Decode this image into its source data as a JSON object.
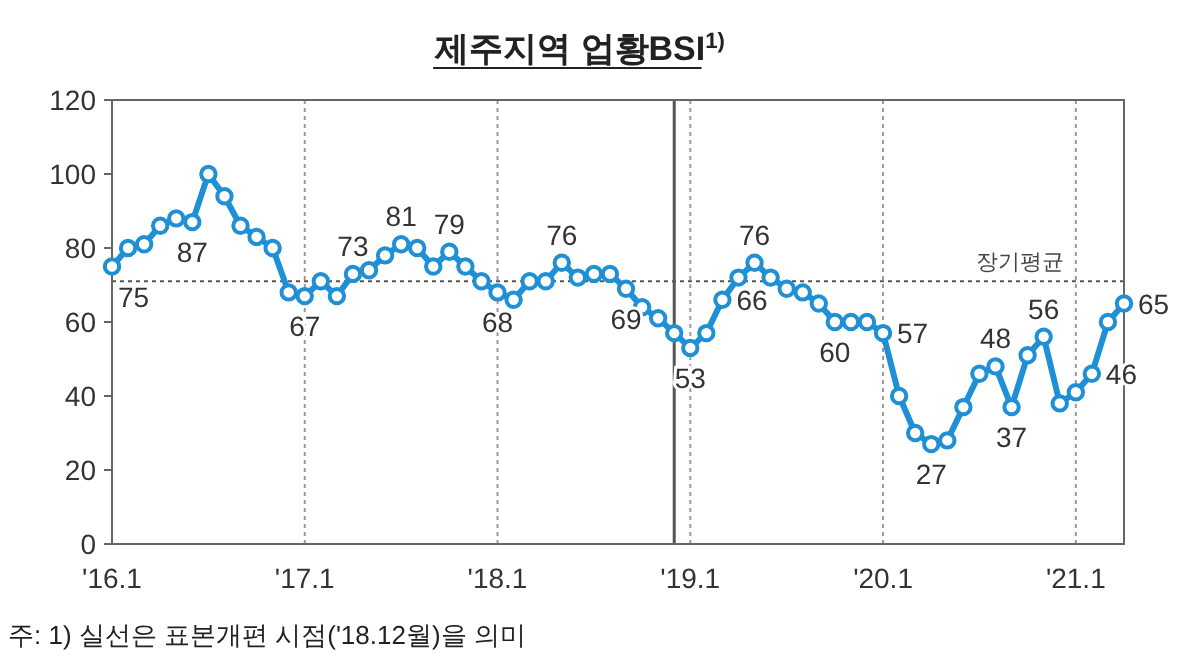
{
  "chart_data": {
    "type": "line",
    "title": "제주지역  업황BSI$^{1)}$",
    "x": [
      "2016-01",
      "2016-02",
      "2016-03",
      "2016-04",
      "2016-05",
      "2016-06",
      "2016-07",
      "2016-08",
      "2016-09",
      "2016-10",
      "2016-11",
      "2016-12",
      "2017-01",
      "2017-02",
      "2017-03",
      "2017-04",
      "2017-05",
      "2017-06",
      "2017-07",
      "2017-08",
      "2017-09",
      "2017-10",
      "2017-11",
      "2017-12",
      "2018-01",
      "2018-02",
      "2018-03",
      "2018-04",
      "2018-05",
      "2018-06",
      "2018-07",
      "2018-08",
      "2018-09",
      "2018-10",
      "2018-11",
      "2018-12",
      "2019-01",
      "2019-02",
      "2019-03",
      "2019-04",
      "2019-05",
      "2019-06",
      "2019-07",
      "2019-08",
      "2019-09",
      "2019-10",
      "2019-11",
      "2019-12",
      "2020-01",
      "2020-02",
      "2020-03",
      "2020-04",
      "2020-05",
      "2020-06",
      "2020-07",
      "2020-08",
      "2020-09",
      "2020-10",
      "2020-11",
      "2020-12",
      "2021-01",
      "2021-02",
      "2021-03",
      "2021-04"
    ],
    "series": [
      {
        "color": "#1f8fd6",
        "values": [
          75,
          80,
          81,
          86,
          88,
          87,
          100,
          94,
          86,
          83,
          80,
          68,
          67,
          71,
          67,
          73,
          74,
          78,
          81,
          80,
          75,
          79,
          75,
          71,
          68,
          66,
          71,
          71,
          76,
          72,
          73,
          73,
          69,
          64,
          61,
          57,
          53,
          57,
          66,
          72,
          76,
          72,
          69,
          68,
          65,
          60,
          60,
          60,
          57,
          40,
          30,
          27,
          28,
          37,
          46,
          48,
          37,
          51,
          56,
          38,
          41,
          46,
          60,
          65
        ],
        "value_labels": [
          "75",
          null,
          null,
          null,
          null,
          "87",
          null,
          null,
          null,
          null,
          null,
          null,
          "67",
          null,
          null,
          "73",
          null,
          null,
          "81",
          null,
          null,
          "79",
          null,
          null,
          "68",
          null,
          null,
          null,
          "76",
          null,
          null,
          null,
          "69",
          null,
          null,
          null,
          "53",
          null,
          "66",
          null,
          "76",
          null,
          null,
          null,
          null,
          "60",
          null,
          null,
          "57",
          null,
          null,
          "27",
          null,
          null,
          null,
          "48",
          "37",
          null,
          "56",
          null,
          null,
          "46",
          null,
          "65"
        ]
      }
    ],
    "xlim": [
      "2016-01",
      "2021-04"
    ],
    "xticks": [
      {
        "value": "2016-01",
        "label": "'16.1"
      },
      {
        "value": "2017-01",
        "label": "'17.1"
      },
      {
        "value": "2018-01",
        "label": "'18.1"
      },
      {
        "value": "2019-01",
        "label": "'19.1"
      },
      {
        "value": "2020-01",
        "label": "'20.1"
      },
      {
        "value": "2021-01",
        "label": "'21.1"
      }
    ],
    "ylim": [
      0,
      120
    ],
    "yticks": [
      0,
      20,
      40,
      60,
      80,
      100,
      120
    ],
    "grid": "x",
    "marker": "circle",
    "line_style": "solid",
    "ref_lines": [
      {
        "axis": "y",
        "value": 71,
        "label": "장기평균",
        "line_style": "dotted",
        "color": "#555555"
      },
      {
        "axis": "x",
        "value": "2018-12",
        "line_style": "solid",
        "color": "#555555"
      }
    ],
    "annotations": [
      "주: 1) 실선은 표본개편 시점('18.12월)을 의미"
    ]
  }
}
